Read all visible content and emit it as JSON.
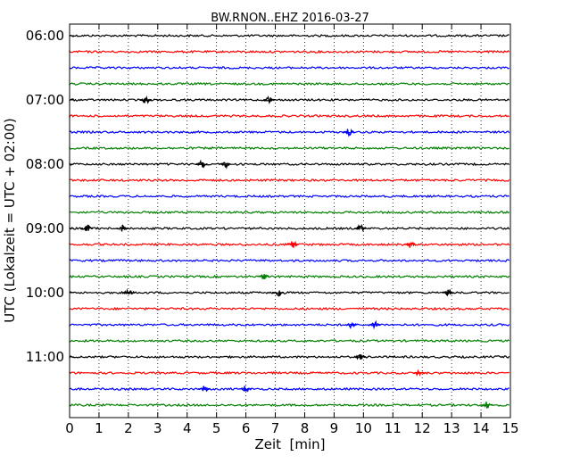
{
  "chart_data": {
    "type": "line",
    "title": "BW.RNON..EHZ 2016-03-27",
    "xlabel": "Zeit  [min]",
    "ylabel": "UTC (Lokalzeit = UTC + 02:00)",
    "xlim": [
      0,
      15
    ],
    "x_ticks": [
      0,
      1,
      2,
      3,
      4,
      5,
      6,
      7,
      8,
      9,
      10,
      11,
      12,
      13,
      14,
      15
    ],
    "x_tick_labels": [
      "0",
      "1",
      "2",
      "3",
      "4",
      "5",
      "6",
      "7",
      "8",
      "9",
      "10",
      "11",
      "12",
      "13",
      "14",
      "15"
    ],
    "y_tick_labels": [
      "06:00",
      "07:00",
      "08:00",
      "09:00",
      "10:00",
      "11:00"
    ],
    "grid": "vertical-dotted",
    "trace_colors": [
      "#000000",
      "#ff0000",
      "#0000ff",
      "#008000"
    ],
    "traces": [
      {
        "time": "06:00",
        "color": "#000000",
        "events": []
      },
      {
        "time": "06:15",
        "color": "#ff0000",
        "events": []
      },
      {
        "time": "06:30",
        "color": "#0000ff",
        "events": []
      },
      {
        "time": "06:45",
        "color": "#008000",
        "events": []
      },
      {
        "time": "07:00",
        "color": "#000000",
        "events": [
          2.6,
          6.8
        ]
      },
      {
        "time": "07:15",
        "color": "#ff0000",
        "events": []
      },
      {
        "time": "07:30",
        "color": "#0000ff",
        "events": [
          9.5
        ]
      },
      {
        "time": "07:45",
        "color": "#008000",
        "events": []
      },
      {
        "time": "08:00",
        "color": "#000000",
        "events": [
          4.5,
          5.3
        ]
      },
      {
        "time": "08:15",
        "color": "#ff0000",
        "events": []
      },
      {
        "time": "08:30",
        "color": "#0000ff",
        "events": []
      },
      {
        "time": "08:45",
        "color": "#008000",
        "events": []
      },
      {
        "time": "09:00",
        "color": "#000000",
        "events": [
          0.6,
          1.8,
          9.9
        ]
      },
      {
        "time": "09:15",
        "color": "#ff0000",
        "events": [
          7.6,
          11.6
        ]
      },
      {
        "time": "09:30",
        "color": "#0000ff",
        "events": []
      },
      {
        "time": "09:45",
        "color": "#008000",
        "events": [
          6.6
        ]
      },
      {
        "time": "10:00",
        "color": "#000000",
        "events": [
          2.0,
          7.1,
          12.9
        ]
      },
      {
        "time": "10:15",
        "color": "#ff0000",
        "events": []
      },
      {
        "time": "10:30",
        "color": "#0000ff",
        "events": [
          9.6,
          10.4
        ]
      },
      {
        "time": "10:45",
        "color": "#008000",
        "events": []
      },
      {
        "time": "11:00",
        "color": "#000000",
        "events": [
          9.9
        ]
      },
      {
        "time": "11:15",
        "color": "#ff0000",
        "events": [
          11.9
        ]
      },
      {
        "time": "11:30",
        "color": "#0000ff",
        "events": [
          4.6,
          6.0
        ]
      },
      {
        "time": "11:45",
        "color": "#008000",
        "events": [
          14.2
        ]
      }
    ]
  }
}
